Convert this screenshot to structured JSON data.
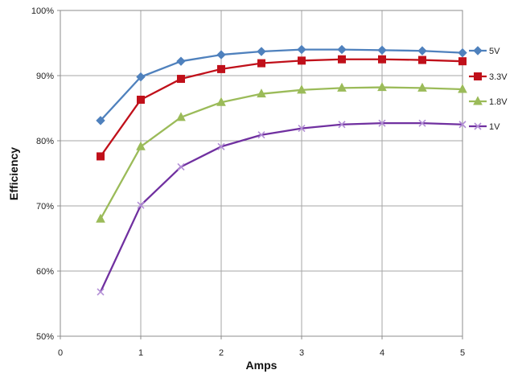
{
  "chart_data": {
    "type": "line",
    "title": "",
    "xlabel": "Amps",
    "ylabel": "Efficiency",
    "xlim": [
      0,
      5
    ],
    "ylim": [
      50,
      100
    ],
    "x_ticks": [
      0,
      1,
      2,
      3,
      4,
      5
    ],
    "y_ticks": [
      50,
      60,
      70,
      80,
      90,
      100
    ],
    "y_tick_suffix": "%",
    "grid": true,
    "legend_position": "right",
    "x": [
      0.5,
      1,
      1.5,
      2,
      2.5,
      3,
      3.5,
      4,
      4.5,
      5
    ],
    "series": [
      {
        "name": "5V",
        "color": "#4f81bd",
        "marker": "diamond",
        "values": [
          83.1,
          89.8,
          92.2,
          93.2,
          93.7,
          94.0,
          94.0,
          93.9,
          93.8,
          93.5
        ]
      },
      {
        "name": "3.3V",
        "color": "#c0101a",
        "marker": "square",
        "values": [
          77.6,
          86.3,
          89.5,
          91.0,
          91.9,
          92.3,
          92.5,
          92.5,
          92.4,
          92.2
        ]
      },
      {
        "name": "1.8V",
        "color": "#9bbb59",
        "marker": "triangle",
        "values": [
          68.0,
          79.1,
          83.6,
          85.9,
          87.2,
          87.8,
          88.1,
          88.2,
          88.1,
          87.9
        ]
      },
      {
        "name": "1V",
        "color": "#7030a0",
        "marker": "x",
        "values": [
          56.8,
          70.1,
          76.0,
          79.1,
          80.9,
          81.9,
          82.5,
          82.7,
          82.7,
          82.5
        ]
      }
    ]
  }
}
